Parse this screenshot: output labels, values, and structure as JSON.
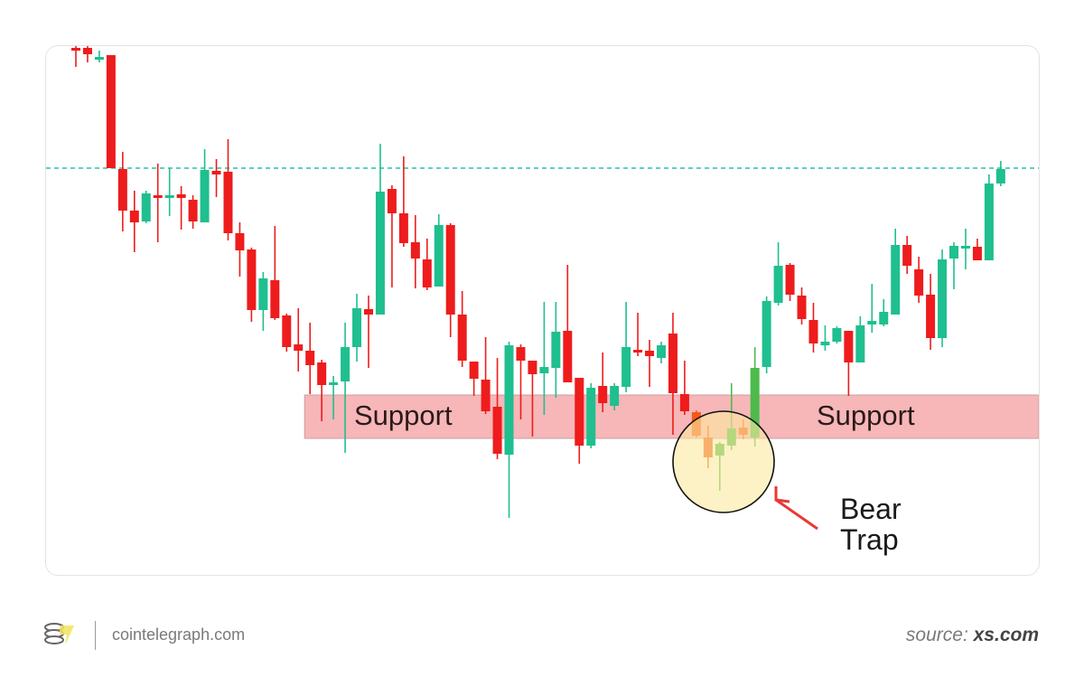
{
  "chart_data": {
    "type": "candlestick",
    "title": "",
    "xlabel": "",
    "ylabel": "",
    "grid": false,
    "colors": {
      "up": "#1fbf8f",
      "down": "#ee1c1c",
      "trap_up": "#4cbb4c",
      "trap_down": "#f25a1a",
      "resistance": "#2fbfa6",
      "support_zone": "#f7b6b8",
      "trap_circle": "#fbeaa0",
      "arrow": "#e83a35"
    },
    "candles_ohlc": [
      [
        54.8,
        55,
        52.7,
        54.7
      ],
      [
        54.8,
        55,
        53.2,
        54.1
      ],
      [
        53.7,
        54.5,
        53.2,
        53.8
      ],
      [
        54,
        54,
        41.5,
        41.5
      ],
      [
        41.4,
        43.3,
        34.5,
        36.8
      ],
      [
        36.8,
        39,
        32.2,
        35.5
      ],
      [
        35.6,
        39,
        35.4,
        38.7
      ],
      [
        38.5,
        42,
        33.3,
        38.3
      ],
      [
        38.3,
        41.5,
        36.2,
        38.5
      ],
      [
        38.6,
        39.5,
        34.7,
        38.2
      ],
      [
        38,
        38.5,
        34.8,
        35.6
      ],
      [
        35.5,
        43.6,
        35.5,
        41.3
      ],
      [
        41.2,
        42.5,
        38.3,
        40.8
      ],
      [
        41.1,
        44.7,
        33.5,
        34.3
      ],
      [
        34.3,
        35.5,
        29.5,
        32.4
      ],
      [
        32.5,
        32.7,
        24.5,
        25.8
      ],
      [
        25.8,
        30,
        23.5,
        29.3
      ],
      [
        29.1,
        35.1,
        24.7,
        24.9
      ],
      [
        25.2,
        25.4,
        21.2,
        21.7
      ],
      [
        22,
        26,
        19,
        21.3
      ],
      [
        21.3,
        24.4,
        16.5,
        19.7
      ],
      [
        20,
        20.3,
        13.5,
        17.5
      ],
      [
        17.6,
        18.5,
        13.7,
        17.8
      ],
      [
        17.9,
        24.4,
        10,
        21.7
      ],
      [
        21.7,
        27.6,
        20.1,
        26
      ],
      [
        25.9,
        27.4,
        19.4,
        25.3
      ],
      [
        25.3,
        44.2,
        25.3,
        38.9
      ],
      [
        39.2,
        39.6,
        28.3,
        36.5
      ],
      [
        36.5,
        42.8,
        32.8,
        33.2
      ],
      [
        33.3,
        36.3,
        28.2,
        31.5
      ],
      [
        31.4,
        33.7,
        28,
        28.3
      ],
      [
        28.4,
        36.4,
        28.4,
        35.2
      ],
      [
        35.2,
        35.4,
        22.8,
        25.3
      ],
      [
        25.3,
        27.9,
        19.5,
        20.2
      ],
      [
        20.1,
        20.1,
        16.3,
        18.2
      ],
      [
        18.1,
        22.8,
        14.3,
        14.6
      ],
      [
        15.1,
        20.5,
        9.3,
        9.9
      ],
      [
        9.8,
        22.3,
        2.8,
        21.9
      ],
      [
        21.7,
        22,
        13.7,
        20.2
      ],
      [
        20.2,
        20.2,
        11.8,
        18.7
      ],
      [
        18.8,
        26.7,
        14.2,
        19.5
      ],
      [
        19.4,
        26.7,
        16.1,
        23.4
      ],
      [
        23.5,
        30.8,
        17.8,
        17.8
      ],
      [
        18.3,
        18.3,
        8.8,
        10.8
      ],
      [
        10.8,
        17.7,
        10.5,
        17.2
      ],
      [
        17.4,
        21.1,
        14.5,
        15.5
      ],
      [
        15.2,
        17.7,
        14.7,
        17.4
      ],
      [
        17.3,
        26.7,
        16.7,
        21.7
      ],
      [
        21.4,
        25.5,
        20.7,
        21.2
      ],
      [
        21.3,
        22.5,
        17.3,
        20.7
      ],
      [
        20.5,
        22.3,
        19.9,
        21.9
      ],
      [
        23.2,
        25.5,
        12,
        16.6
      ],
      [
        16.5,
        20.2,
        14.2,
        14.6
      ],
      [
        14.5,
        14.7,
        11.7,
        11.9
      ],
      [
        11.7,
        13,
        8.3,
        9.5
      ],
      [
        9.7,
        11.2,
        5.8,
        11
      ],
      [
        10.8,
        17.7,
        10.3,
        12.7
      ],
      [
        12.8,
        13.7,
        11.5,
        12
      ],
      [
        11.7,
        21.7,
        10.7,
        19.4
      ],
      [
        19.5,
        27.3,
        18.8,
        26.8
      ],
      [
        26.6,
        33.3,
        26.3,
        30.7
      ],
      [
        30.8,
        31,
        26.8,
        27.5
      ],
      [
        27.4,
        28.3,
        24.2,
        24.8
      ],
      [
        24.7,
        26.6,
        21.1,
        22.1
      ],
      [
        21.9,
        24.1,
        21.3,
        22.3
      ],
      [
        22.3,
        24,
        22.1,
        23.8
      ],
      [
        23.5,
        23.5,
        16.3,
        20
      ],
      [
        20,
        25.1,
        20,
        24.1
      ],
      [
        24.2,
        28.7,
        23.3,
        24.6
      ],
      [
        24.2,
        27,
        24,
        25.6
      ],
      [
        25.3,
        34.8,
        25.3,
        33
      ],
      [
        33,
        34,
        29.8,
        30.7
      ],
      [
        30.3,
        31.7,
        26.6,
        27.4
      ],
      [
        27.5,
        29.8,
        21.4,
        22.7
      ],
      [
        22.7,
        32.5,
        21.7,
        31.4
      ],
      [
        31.5,
        33.3,
        28.1,
        32.9
      ],
      [
        32.7,
        34.8,
        30.3,
        32.9
      ],
      [
        32.8,
        33.7,
        31.3,
        31.3
      ],
      [
        31.3,
        40.8,
        31.3,
        39.8
      ],
      [
        39.8,
        42.3,
        39.5,
        41.4
      ]
    ],
    "trap_candle_range": [
      53,
      58
    ],
    "resistance_level": 41.5,
    "support_zone": {
      "low": 11.6,
      "high": 16.4,
      "start_candle": 20
    },
    "annotations": {
      "support_left": "Support",
      "support_right": "Support",
      "bear_trap_line1": "Bear",
      "bear_trap_line2": "Trap"
    }
  },
  "footer": {
    "logo_icon": "cointelegraph-coins-logo",
    "site": "cointelegraph.com",
    "source_prefix": "source: ",
    "source_name": "xs.com"
  }
}
